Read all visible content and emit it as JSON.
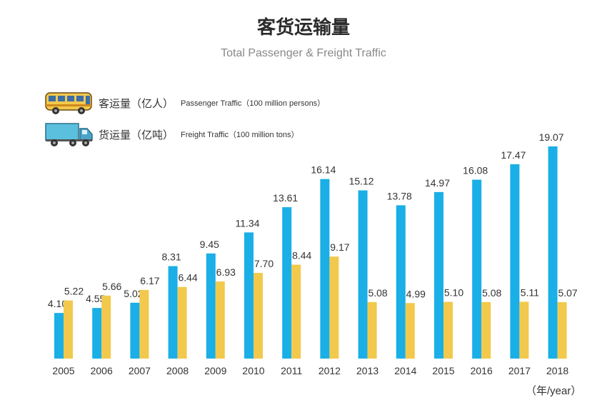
{
  "title": "客货运输量",
  "subtitle": "Total Passenger & Freight Traffic",
  "legend": [
    {
      "label_zh": "客运量（亿人）",
      "label_en": "Passenger Traffic（100 million persons）",
      "icon": "bus-icon",
      "color": "#F2C94C"
    },
    {
      "label_zh": "货运量（亿吨）",
      "label_en": "Freight Traffic（100 million tons）",
      "icon": "truck-icon",
      "color": "#1AAFE6"
    }
  ],
  "unit_label": "（年/year）",
  "chart_data": {
    "type": "bar",
    "categories": [
      "2005",
      "2006",
      "2007",
      "2008",
      "2009",
      "2010",
      "2011",
      "2012",
      "2013",
      "2014",
      "2015",
      "2016",
      "2017",
      "2018"
    ],
    "series": [
      {
        "name": "货运量（亿吨） Freight Traffic（100 million tons）",
        "color": "#1AAFE6",
        "values": [
          4.1,
          4.55,
          5.02,
          8.31,
          9.45,
          11.34,
          13.61,
          16.14,
          15.12,
          13.78,
          14.97,
          16.08,
          17.47,
          19.07
        ],
        "labels": [
          "4.10",
          "4.55",
          "5.02",
          "8.31",
          "9.45",
          "11.34",
          "13.61",
          "16.14",
          "15.12",
          "13.78",
          "14.97",
          "16.08",
          "17.47",
          "19.07"
        ]
      },
      {
        "name": "客运量（亿人） Passenger Traffic（100 million persons）",
        "color": "#F2C94C",
        "values": [
          5.22,
          5.66,
          6.17,
          6.44,
          6.93,
          7.7,
          8.44,
          9.17,
          5.08,
          4.99,
          5.1,
          5.08,
          5.11,
          5.07
        ],
        "labels": [
          "5.22",
          "5.66",
          "6.17",
          "6.44",
          "6.93",
          "7.70",
          "8.44",
          "9.17",
          "5.08",
          "4.99",
          "5.10",
          "5.08",
          "5.11",
          "5.07"
        ]
      }
    ],
    "ylim": [
      0,
      20
    ],
    "grid": false,
    "legend_position": "top-left"
  }
}
